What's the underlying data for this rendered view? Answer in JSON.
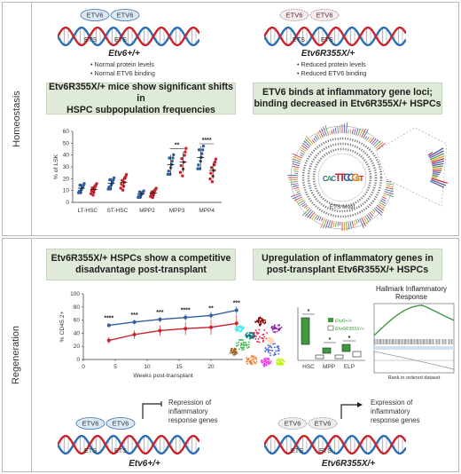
{
  "sections": {
    "homeostasis": "Homeostasis",
    "regeneration": "Regeneration"
  },
  "top_left": {
    "genotype": "Etv6+/+",
    "bullets": [
      "• Normal protein levels",
      "• Normal ETV6 binding"
    ],
    "etv6_labels": [
      "ETV6",
      "ETV6"
    ],
    "ets_labels": [
      "ETS",
      "ETS"
    ]
  },
  "top_right": {
    "genotype": "Etv6R355X/+",
    "bullets": [
      "• Reduced protein levels",
      "• Reduced ETV6 binding"
    ],
    "etv6_labels": [
      "ETV6",
      "ETV6"
    ],
    "ets_labels": [
      "ETS",
      "ETS"
    ]
  },
  "box1": {
    "line1": "Etv6R355X/+ mice show significant shifts in",
    "line2": "HSPC subpopulation frequencies"
  },
  "box2": {
    "line1": "ETV6 binds at inflammatory gene loci;",
    "line2": "binding decreased in Etv6R355X/+ HSPCs"
  },
  "box3": {
    "line1": "Etv6R355X/+ HSPCs show a competitive",
    "line2": "disadvantage post-transplant"
  },
  "box4": {
    "line1": "Upregulation of inflammatory genes in",
    "line2": "post-transplant Etv6R355X/+ HSPCs"
  },
  "circos": {
    "motif_text": "CACTTCCGGT",
    "motif_label": "ETS Motif"
  },
  "gsea": {
    "title_line1": "Hallmark Inflammatory",
    "title_line2": "Response",
    "xlabel": "Rank in ordered dataset"
  },
  "box_plot": {
    "legend": [
      "Etv6+/+",
      "Etv6R355X/+"
    ],
    "categories": [
      "HSC",
      "MPP",
      "ELP"
    ],
    "sig": "*"
  },
  "bottom_left": {
    "genotype": "Etv6+/+",
    "caption_line1": "Repression of",
    "caption_line2": "inflammatory",
    "caption_line3": "response genes",
    "etv6_labels": [
      "ETV6",
      "ETV6"
    ],
    "ets_labels": [
      "ETS",
      "ETS"
    ]
  },
  "bottom_right": {
    "genotype": "Etv6R355X/+",
    "caption_line1": "Expression of",
    "caption_line2": "inflammatory",
    "caption_line3": "response genes",
    "etv6_labels": [
      "ETV6",
      "ETV6"
    ],
    "ets_labels": [
      "ETS",
      "ETS"
    ]
  },
  "colors": {
    "wt": "#2f5f9e",
    "mut": "#c8232c",
    "green_box": "#dfead8",
    "dna_blue": "#2a6db4",
    "dna_red": "#c8232c"
  },
  "chart_data": [
    {
      "type": "scatter",
      "categories": [
        "LT-HSC",
        "ST-HSC",
        "MPP2",
        "MPP3",
        "MPP4"
      ],
      "ylabel": "% of LSK",
      "ylim": [
        0,
        60
      ],
      "yticks": [
        "0",
        "10",
        "20",
        "30",
        "40",
        "50",
        "60"
      ],
      "series": [
        {
          "color": "#2f5f9e",
          "means": [
            12,
            16,
            7,
            32,
            38
          ]
        },
        {
          "color": "#c8232c",
          "means": [
            11,
            17,
            8,
            34,
            27
          ]
        }
      ],
      "annotations": [
        {
          "category": "MPP3",
          "text": "**"
        },
        {
          "category": "MPP4",
          "text": "****"
        }
      ]
    },
    {
      "type": "line",
      "x": [
        4,
        8,
        12,
        16,
        20,
        24
      ],
      "xlabel": "Weeks post-transplant",
      "ylabel": "% CD45.2+",
      "xlim": [
        0,
        25
      ],
      "ylim": [
        0,
        100
      ],
      "xticks": [
        "0",
        "5",
        "10",
        "15",
        "20"
      ],
      "yticks": [
        "0",
        "20",
        "40",
        "60",
        "80",
        "100"
      ],
      "series": [
        {
          "color": "#2f5f9e",
          "values": [
            52,
            57,
            61,
            64,
            67,
            75
          ]
        },
        {
          "color": "#c8232c",
          "values": [
            29,
            38,
            44,
            47,
            49,
            55
          ]
        }
      ],
      "annotations": [
        "****",
        "***",
        "***",
        "****",
        "**",
        "***"
      ]
    }
  ]
}
